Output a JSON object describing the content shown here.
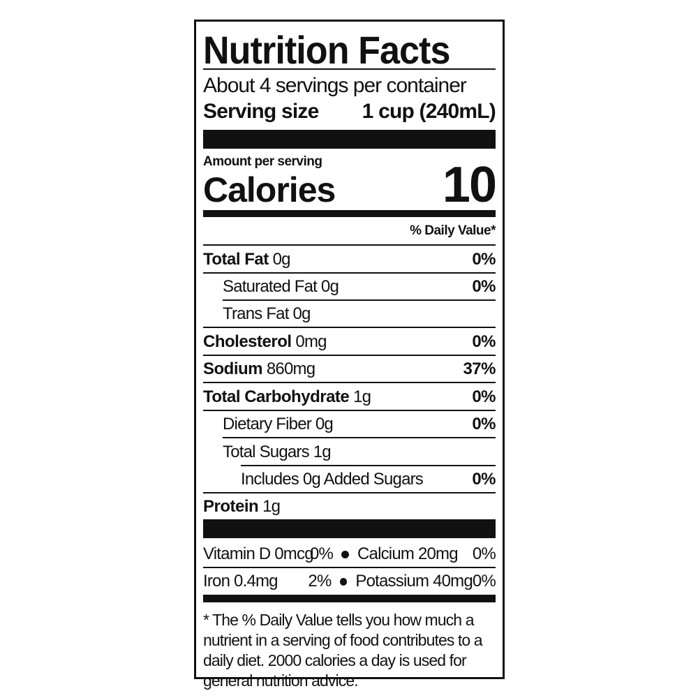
{
  "title": "Nutrition Facts",
  "servings_per_container": "About 4 servings per container",
  "serving_size_label": "Serving size",
  "serving_size_value": "1 cup (240mL)",
  "amount_per_serving": "Amount per serving",
  "calories_label": "Calories",
  "calories_value": "10",
  "daily_value_header": "% Daily Value*",
  "nutrients": [
    {
      "name": "Total Fat",
      "amount": "0g",
      "dv": "0%"
    },
    {
      "name": "Saturated Fat",
      "amount": "0g",
      "dv": "0%"
    },
    {
      "name": "Trans Fat",
      "amount": "0g",
      "dv": ""
    },
    {
      "name": "Cholesterol",
      "amount": "0mg",
      "dv": "0%"
    },
    {
      "name": "Sodium",
      "amount": "860mg",
      "dv": "37%"
    },
    {
      "name": "Total Carbohydrate",
      "amount": "1g",
      "dv": "0%"
    },
    {
      "name": "Dietary Fiber",
      "amount": "0g",
      "dv": "0%"
    },
    {
      "name": "Total Sugars",
      "amount": "1g",
      "dv": ""
    },
    {
      "name": "Includes 0g Added Sugars",
      "amount": "",
      "dv": "0%"
    },
    {
      "name": "Protein",
      "amount": "1g",
      "dv": ""
    }
  ],
  "micronutrients": [
    {
      "left_name": "Vitamin D 0mcg",
      "left_dv": "0%",
      "right_name": "Calcium 20mg",
      "right_dv": "0%"
    },
    {
      "left_name": "Iron 0.4mg",
      "left_dv": "2%",
      "right_name": "Potassium 40mg",
      "right_dv": "0%"
    }
  ],
  "footnote": "* The % Daily Value tells you how much a nutrient in a serving of food contributes to a daily diet. 2000 calories a day is used for general nutrition advice."
}
